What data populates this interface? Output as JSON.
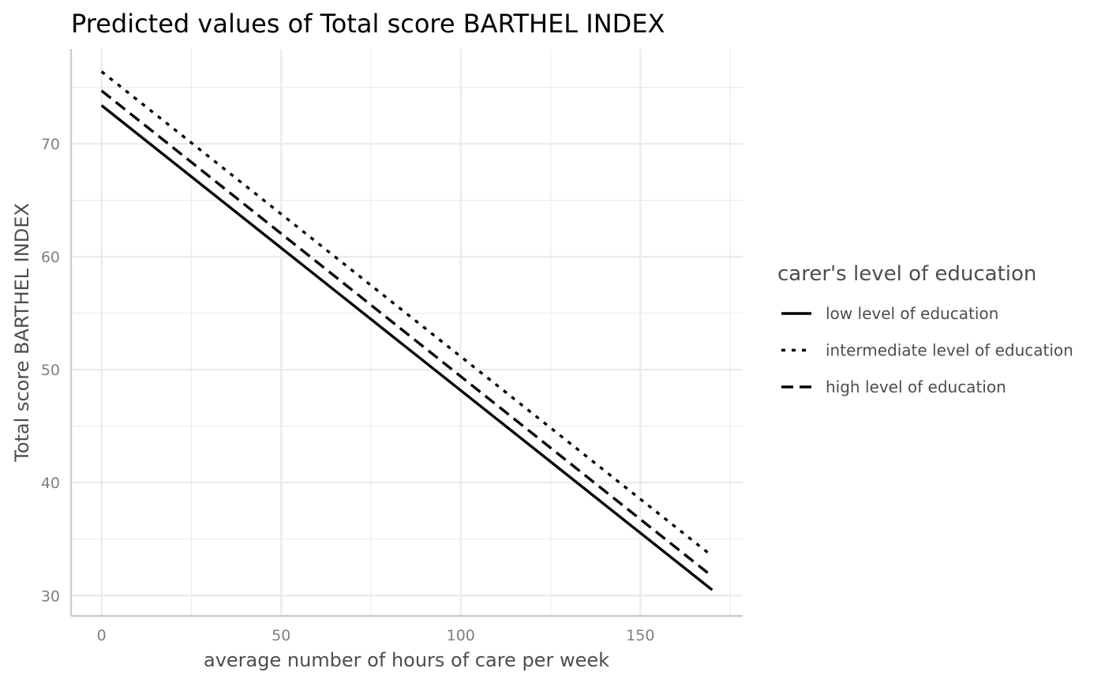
{
  "chart_data": {
    "type": "line",
    "title": "Predicted values of Total score BARTHEL INDEX",
    "xlabel": "average number of hours of care per week",
    "ylabel": "Total score BARTHEL INDEX",
    "xlim": [
      -8.5,
      178.5
    ],
    "ylim": [
      28.2,
      78.4
    ],
    "x_ticks": [
      0,
      50,
      100,
      150
    ],
    "y_ticks": [
      30,
      40,
      50,
      60,
      70
    ],
    "x_minor_ticks": [
      25,
      75,
      125,
      175
    ],
    "y_minor_ticks": [
      35,
      45,
      55,
      65,
      75
    ],
    "grid": true,
    "legend": {
      "title": "carer's level of education",
      "position": "right"
    },
    "series": [
      {
        "name": "low level of education",
        "linetype": "solid",
        "x": [
          0,
          170
        ],
        "y": [
          73.4,
          30.5
        ]
      },
      {
        "name": "intermediate level of education",
        "linetype": "dotted",
        "x": [
          0,
          170
        ],
        "y": [
          76.4,
          33.5
        ]
      },
      {
        "name": "high level of education",
        "linetype": "dashed",
        "x": [
          0,
          170
        ],
        "y": [
          74.7,
          31.7
        ]
      }
    ],
    "colors": {
      "line": "#000000",
      "grid": "#ebebeb",
      "axis": "#cccccc"
    }
  }
}
